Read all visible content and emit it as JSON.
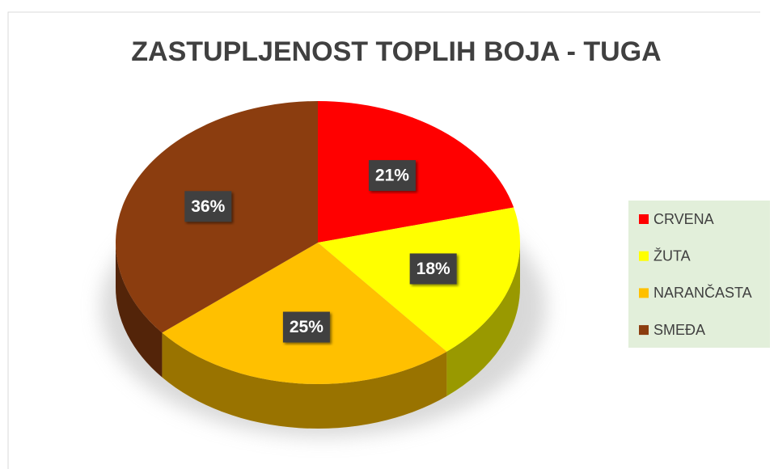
{
  "chart_data": {
    "type": "pie",
    "title": "ZASTUPLJENOST TOPLIH BOJA - TUGA",
    "categories": [
      "CRVENA",
      "ŽUTA",
      "NARANČASTA",
      "SMEĐA"
    ],
    "values": [
      21,
      18,
      25,
      36
    ],
    "value_labels": [
      "21%",
      "18%",
      "25%",
      "36%"
    ],
    "colors": [
      "#ff0000",
      "#ffff00",
      "#ffc000",
      "#8b3d0f"
    ],
    "legend": "right"
  }
}
